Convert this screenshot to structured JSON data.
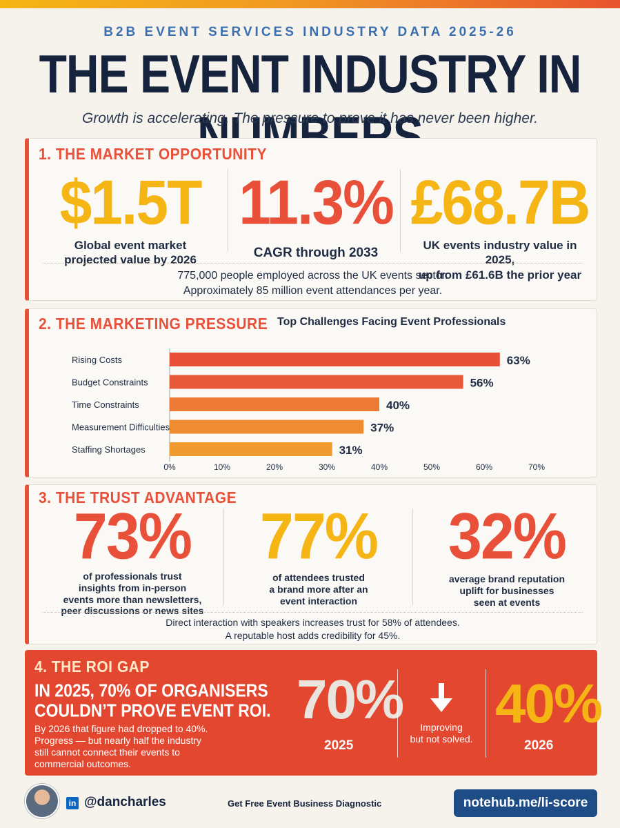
{
  "header": {
    "eyebrow": "B2B EVENT SERVICES INDUSTRY DATA 2025-26",
    "title": "THE EVENT INDUSTRY IN NUMBERS",
    "subtitle": "Growth is accelerating. The pressure to prove it has never been higher."
  },
  "colors": {
    "red": "#e8503a",
    "amber": "#f5b514",
    "navy": "#16233d"
  },
  "market": {
    "title": "1. THE MARKET OPPORTUNITY",
    "stats": [
      {
        "value": "$1.5T",
        "label_line1": "Global event market",
        "label_line2": "projected value by 2026"
      },
      {
        "value": "11.3%",
        "label_line1": "CAGR through 2033",
        "label_line2": ""
      },
      {
        "value": "£68.7B",
        "label_line1": "UK events industry value in 2025,",
        "label_line2": "up from £61.6B the prior year"
      }
    ],
    "footnote_line1": "775,000 people employed across the UK events sector.",
    "footnote_line2": "Approximately 85 million event attendances per year."
  },
  "pressure": {
    "title": "2. THE MARKETING PRESSURE"
  },
  "chart_data": {
    "type": "bar",
    "orientation": "horizontal",
    "title": "Top Challenges Facing Event Professionals",
    "categories": [
      "Rising Costs",
      "Budget Constraints",
      "Time Constraints",
      "Measurement Difficulties",
      "Staffing Shortages"
    ],
    "values": [
      63,
      56,
      40,
      37,
      31
    ],
    "value_labels": [
      "63%",
      "56%",
      "40%",
      "37%",
      "31%"
    ],
    "bar_colors": [
      "#e8503a",
      "#e8593a",
      "#ec7a35",
      "#ef8c32",
      "#f19a2f"
    ],
    "xlim": [
      0,
      70
    ],
    "xticks": [
      "0%",
      "10%",
      "20%",
      "30%",
      "40%",
      "50%",
      "60%",
      "70%"
    ],
    "grid": false
  },
  "trust": {
    "title": "3. THE TRUST ADVANTAGE",
    "stats": [
      {
        "value": "73%",
        "lines": [
          "of professionals trust",
          "insights from in-person",
          "events more than newsletters,",
          "peer discussions or news sites"
        ]
      },
      {
        "value": "77%",
        "lines": [
          "of attendees trusted",
          "a brand more after an",
          "event interaction"
        ]
      },
      {
        "value": "32%",
        "lines": [
          "average brand reputation",
          "uplift for businesses",
          "seen at events"
        ]
      }
    ],
    "footnote_line1": "Direct interaction with speakers increases trust for 58% of attendees.",
    "footnote_line2": "A reputable host adds credibility for 45%."
  },
  "roi": {
    "title": "4. THE ROI GAP",
    "headline_line1": "IN 2025, 70% OF ORGANISERS",
    "headline_line2": "COULDN’T PROVE EVENT ROI.",
    "body_lines": [
      "By 2026 that figure had dropped to 40%.",
      "Progress — but nearly half the industry",
      "still cannot connect their events to",
      "commercial outcomes."
    ],
    "value_2025": "70%",
    "year_2025": "2025",
    "arrow_icon": "arrow-down-icon",
    "improving_line1": "Improving",
    "improving_line2": "but not solved.",
    "value_2026": "40%",
    "year_2026": "2026"
  },
  "footer": {
    "linkedin_icon": "in",
    "handle": "@dancharles",
    "cta": "Get Free Event Business Diagnostic",
    "url": "notehub.me/li-score"
  }
}
